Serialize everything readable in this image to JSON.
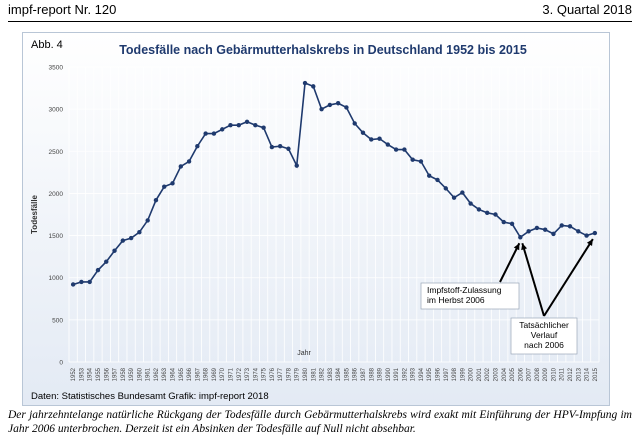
{
  "header": {
    "left": "impf-report Nr. 120",
    "right": "3. Quartal 2018"
  },
  "figure_label": "Abb. 4",
  "source": "Daten: Statistisches Bundesamt   Grafik: impf-report 2018",
  "caption": "Der jahrzehntelange natürliche Rückgang der Todesfälle durch Gebärmutterhalskrebs wird exakt mit Einführung der HPV-Impfung im Jahr 2006 unterbrochen. Derzeit ist ein Absinken der Todesfälle auf Null nicht absehbar.",
  "annotations": [
    {
      "text": "Impfstoff-Zulassung\nim Herbst 2006"
    },
    {
      "text": "Tatsächlicher\nVerlauf\nnach 2006"
    }
  ],
  "colors": {
    "line": "#1f3a6e",
    "title": "#1f3a6e",
    "grid": "#ffffff",
    "arrow": "#000000"
  },
  "chart_data": {
    "type": "line",
    "title": "Todesfälle nach Gebärmutterhalskrebs in Deutschland 1952 bis 2015",
    "xlabel": "Jahr",
    "ylabel": "Todesfälle",
    "ylim": [
      0,
      3500
    ],
    "yticks": [
      0,
      500,
      1000,
      1500,
      2000,
      2500,
      3000,
      3500
    ],
    "x": [
      1952,
      1953,
      1954,
      1955,
      1956,
      1957,
      1958,
      1959,
      1960,
      1961,
      1962,
      1963,
      1964,
      1965,
      1966,
      1967,
      1968,
      1969,
      1970,
      1971,
      1972,
      1973,
      1974,
      1975,
      1976,
      1977,
      1978,
      1979,
      1980,
      1981,
      1982,
      1983,
      1984,
      1985,
      1986,
      1987,
      1988,
      1989,
      1990,
      1991,
      1992,
      1993,
      1994,
      1995,
      1996,
      1997,
      1998,
      1999,
      2000,
      2001,
      2002,
      2003,
      2004,
      2005,
      2006,
      2007,
      2008,
      2009,
      2010,
      2011,
      2012,
      2013,
      2014,
      2015
    ],
    "values": [
      920,
      950,
      950,
      1090,
      1190,
      1320,
      1440,
      1470,
      1540,
      1680,
      1920,
      2080,
      2120,
      2320,
      2380,
      2560,
      2710,
      2710,
      2760,
      2810,
      2810,
      2850,
      2810,
      2780,
      2550,
      2560,
      2530,
      2330,
      3310,
      3270,
      3000,
      3050,
      3070,
      3020,
      2830,
      2720,
      2640,
      2650,
      2580,
      2520,
      2520,
      2400,
      2380,
      2210,
      2160,
      2060,
      1950,
      2010,
      1880,
      1810,
      1770,
      1750,
      1660,
      1640,
      1480,
      1550,
      1590,
      1570,
      1520,
      1620,
      1610,
      1550,
      1500,
      1530
    ],
    "grid": true,
    "legend": "none"
  }
}
